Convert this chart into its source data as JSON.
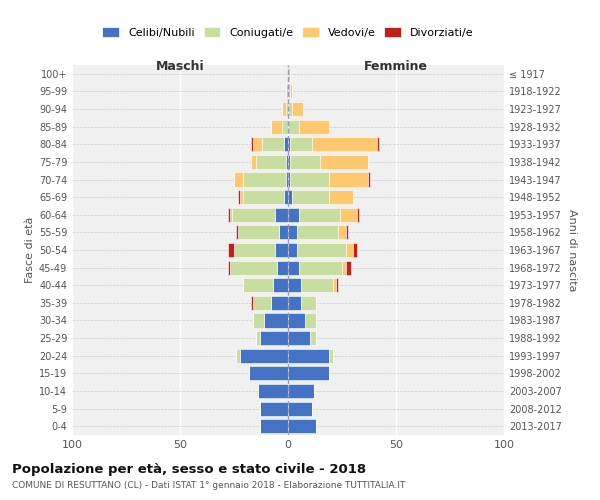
{
  "age_groups": [
    "0-4",
    "5-9",
    "10-14",
    "15-19",
    "20-24",
    "25-29",
    "30-34",
    "35-39",
    "40-44",
    "45-49",
    "50-54",
    "55-59",
    "60-64",
    "65-69",
    "70-74",
    "75-79",
    "80-84",
    "85-89",
    "90-94",
    "95-99",
    "100+"
  ],
  "birth_years": [
    "2013-2017",
    "2008-2012",
    "2003-2007",
    "1998-2002",
    "1993-1997",
    "1988-1992",
    "1983-1987",
    "1978-1982",
    "1973-1977",
    "1968-1972",
    "1963-1967",
    "1958-1962",
    "1953-1957",
    "1948-1952",
    "1943-1947",
    "1938-1942",
    "1933-1937",
    "1928-1932",
    "1923-1927",
    "1918-1922",
    "≤ 1917"
  ],
  "colors": {
    "celibi": "#4472C4",
    "coniugati": "#c8dda0",
    "vedovi": "#fdc86e",
    "divorziati": "#c0201c"
  },
  "maschi": {
    "celibi": [
      13,
      13,
      14,
      18,
      22,
      13,
      11,
      8,
      7,
      5,
      6,
      4,
      6,
      2,
      1,
      1,
      2,
      0,
      0,
      0,
      0
    ],
    "coniugati": [
      0,
      0,
      0,
      0,
      2,
      2,
      5,
      8,
      14,
      22,
      19,
      19,
      20,
      19,
      20,
      14,
      10,
      3,
      1,
      0,
      0
    ],
    "vedovi": [
      0,
      0,
      0,
      0,
      0,
      0,
      0,
      0,
      0,
      0,
      0,
      0,
      1,
      1,
      4,
      2,
      4,
      5,
      2,
      1,
      0
    ],
    "divorziati": [
      0,
      0,
      0,
      0,
      0,
      0,
      0,
      1,
      0,
      1,
      3,
      1,
      1,
      1,
      0,
      0,
      1,
      0,
      0,
      0,
      0
    ]
  },
  "femmine": {
    "celibi": [
      13,
      11,
      12,
      19,
      19,
      10,
      8,
      6,
      6,
      5,
      4,
      4,
      5,
      2,
      1,
      1,
      1,
      0,
      0,
      0,
      0
    ],
    "coniugati": [
      0,
      0,
      0,
      0,
      2,
      3,
      5,
      7,
      15,
      20,
      23,
      19,
      19,
      17,
      18,
      14,
      10,
      5,
      2,
      1,
      0
    ],
    "vedovi": [
      0,
      0,
      0,
      0,
      0,
      0,
      0,
      0,
      1,
      2,
      3,
      4,
      8,
      11,
      18,
      22,
      30,
      14,
      5,
      1,
      1
    ],
    "divorziati": [
      0,
      0,
      0,
      0,
      0,
      0,
      0,
      0,
      1,
      2,
      2,
      1,
      1,
      0,
      1,
      0,
      1,
      0,
      0,
      0,
      0
    ]
  },
  "title": "Popolazione per età, sesso e stato civile - 2018",
  "subtitle": "COMUNE DI RESUTTANO (CL) - Dati ISTAT 1° gennaio 2018 - Elaborazione TUTTITALIA.IT",
  "xlabel_left": "Maschi",
  "xlabel_right": "Femmine",
  "ylabel_left": "Fasce di età",
  "ylabel_right": "Anni di nascita",
  "xlim": 100,
  "legend_labels": [
    "Celibi/Nubili",
    "Coniugati/e",
    "Vedovi/e",
    "Divorziati/e"
  ],
  "background_color": "#ffffff",
  "plot_bg_color": "#f0f0f0",
  "grid_color": "#ffffff"
}
